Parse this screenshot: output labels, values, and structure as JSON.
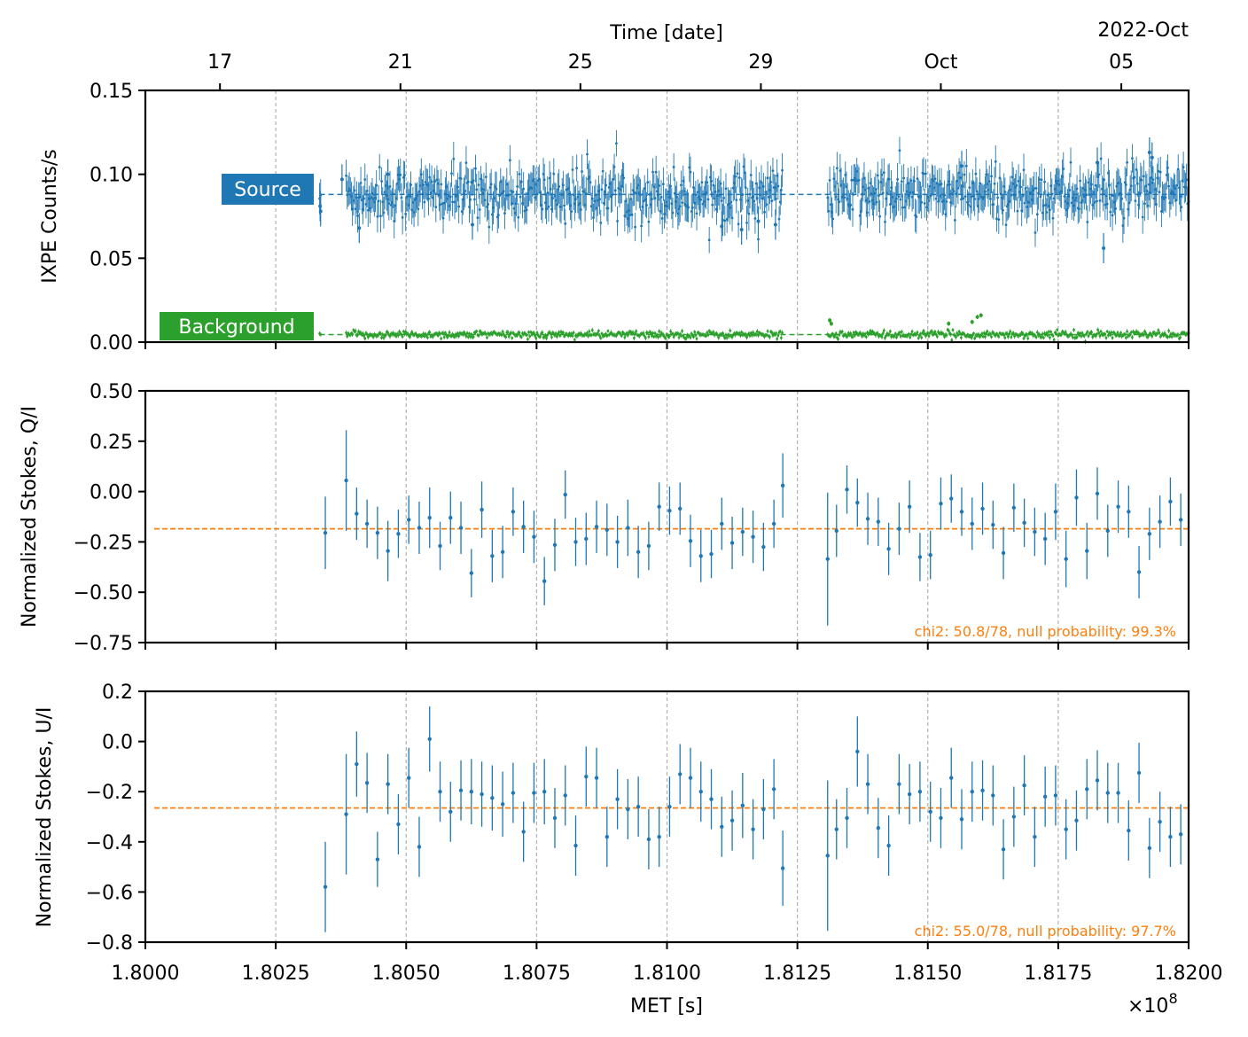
{
  "colors": {
    "source": "#1f77b4",
    "background": "#2ca02c",
    "fit": "#ff7f0e",
    "grid": "#b0b0b0"
  },
  "chart_data": {
    "type": "scatter",
    "x_axis": {
      "label": "MET [s]",
      "range": [
        1.8,
        1.82
      ],
      "ticks": [
        1.8,
        1.8025,
        1.805,
        1.8075,
        1.81,
        1.8125,
        1.815,
        1.8175,
        1.82
      ],
      "tick_labels": [
        "1.8000",
        "1.8025",
        "1.8050",
        "1.8075",
        "1.8100",
        "1.8125",
        "1.8150",
        "1.8175",
        "1.8200"
      ],
      "offset_label": "×10",
      "offset_exponent": "8"
    },
    "top_axis": {
      "label": "Time [date]",
      "corner_label": "2022-Oct",
      "ticks": [
        1.80143,
        1.80489,
        1.80834,
        1.8118,
        1.81525,
        1.81871
      ],
      "tick_labels": [
        "17",
        "21",
        "25",
        "29",
        "Oct",
        "05"
      ]
    },
    "panels": [
      {
        "id": "counts",
        "ylabel": "IXPE Counts/s",
        "ylim": [
          0,
          0.15
        ],
        "yticks": [
          0,
          0.05,
          0.1,
          0.15
        ],
        "ytick_labels": [
          "0.00",
          "0.05",
          "0.10",
          "0.15"
        ],
        "series": [
          {
            "name": "Source",
            "mean": 0.088,
            "sigma": 0.008,
            "err": 0.009,
            "segments": [
              [
                1.80334,
                1.80337
              ],
              [
                1.80385,
                1.81222
              ],
              [
                1.81308,
                1.82
              ]
            ],
            "points": [
              [
                1.80335,
                0.081
              ],
              [
                1.80336,
                0.078
              ],
              [
                1.80377,
                0.097
              ],
              [
                1.8041,
                0.068
              ],
              [
                1.80465,
                0.1
              ],
              [
                1.80627,
                0.07
              ],
              [
                1.81105,
                0.069
              ],
              [
                1.81143,
                0.067
              ],
              [
                1.81175,
                0.072
              ],
              [
                1.81208,
                0.07
              ],
              [
                1.81565,
                0.105
              ],
              [
                1.81825,
                0.107
              ],
              [
                1.81837,
                0.056
              ],
              [
                1.81925,
                0.113
              ],
              [
                1.8193,
                0.11
              ]
            ]
          },
          {
            "name": "Background",
            "mean": 0.0045,
            "sigma": 0.0011,
            "err": 0.0013,
            "segments": [
              [
                1.80334,
                1.80337
              ],
              [
                1.80385,
                1.81222
              ],
              [
                1.81308,
                1.82
              ]
            ],
            "points": [
              [
                1.81312,
                0.013
              ],
              [
                1.81315,
                0.011
              ],
              [
                1.8154,
                0.011
              ],
              [
                1.81585,
                0.012
              ],
              [
                1.81595,
                0.015
              ],
              [
                1.81602,
                0.016
              ]
            ]
          }
        ],
        "dashed_levels": [
          {
            "series": "Source",
            "value": 0.088,
            "x_range": [
              1.80334,
              1.82
            ]
          },
          {
            "series": "Background",
            "value": 0.0045,
            "x_range": [
              1.80334,
              1.82
            ]
          }
        ],
        "series_tags": [
          "Source",
          "Background"
        ]
      },
      {
        "id": "q",
        "ylabel": "Normalized Stokes, Q/I",
        "ylim": [
          -0.75,
          0.5
        ],
        "yticks": [
          -0.75,
          -0.5,
          -0.25,
          0,
          0.25,
          0.5
        ],
        "ytick_labels": [
          "−0.75",
          "−0.50",
          "−0.25",
          "0.00",
          "0.25",
          "0.50"
        ],
        "fit_value": -0.185,
        "chi_label": "chi2: 50.8/78, null probability: 99.3%",
        "points": [
          [
            1.80345,
            -0.205,
            0.18
          ],
          [
            1.80385,
            0.055,
            0.25
          ],
          [
            1.80405,
            -0.11,
            0.13
          ],
          [
            1.80425,
            -0.16,
            0.12
          ],
          [
            1.80445,
            -0.205,
            0.13
          ],
          [
            1.80465,
            -0.295,
            0.15
          ],
          [
            1.80485,
            -0.21,
            0.12
          ],
          [
            1.80505,
            -0.14,
            0.12
          ],
          [
            1.80525,
            -0.18,
            0.13
          ],
          [
            1.80545,
            -0.13,
            0.15
          ],
          [
            1.80565,
            -0.27,
            0.12
          ],
          [
            1.80585,
            -0.13,
            0.13
          ],
          [
            1.80605,
            -0.18,
            0.13
          ],
          [
            1.80625,
            -0.405,
            0.12
          ],
          [
            1.80645,
            -0.09,
            0.14
          ],
          [
            1.80665,
            -0.32,
            0.13
          ],
          [
            1.80685,
            -0.3,
            0.13
          ],
          [
            1.80705,
            -0.1,
            0.12
          ],
          [
            1.80725,
            -0.175,
            0.13
          ],
          [
            1.80745,
            -0.225,
            0.13
          ],
          [
            1.80765,
            -0.445,
            0.12
          ],
          [
            1.80785,
            -0.265,
            0.13
          ],
          [
            1.80805,
            -0.015,
            0.12
          ],
          [
            1.80825,
            -0.25,
            0.12
          ],
          [
            1.80845,
            -0.235,
            0.13
          ],
          [
            1.80865,
            -0.175,
            0.13
          ],
          [
            1.80885,
            -0.19,
            0.13
          ],
          [
            1.80905,
            -0.25,
            0.13
          ],
          [
            1.80925,
            -0.18,
            0.14
          ],
          [
            1.80945,
            -0.3,
            0.13
          ],
          [
            1.80965,
            -0.27,
            0.12
          ],
          [
            1.80985,
            -0.075,
            0.12
          ],
          [
            1.81005,
            -0.095,
            0.12
          ],
          [
            1.81025,
            -0.085,
            0.13
          ],
          [
            1.81045,
            -0.245,
            0.13
          ],
          [
            1.81065,
            -0.32,
            0.13
          ],
          [
            1.81085,
            -0.31,
            0.12
          ],
          [
            1.81105,
            -0.16,
            0.13
          ],
          [
            1.81125,
            -0.255,
            0.13
          ],
          [
            1.81145,
            -0.2,
            0.12
          ],
          [
            1.81165,
            -0.225,
            0.13
          ],
          [
            1.81185,
            -0.275,
            0.12
          ],
          [
            1.81205,
            -0.16,
            0.12
          ],
          [
            1.81222,
            0.03,
            0.16
          ],
          [
            1.81308,
            -0.335,
            0.33
          ],
          [
            1.81325,
            -0.195,
            0.13
          ],
          [
            1.81345,
            0.01,
            0.12
          ],
          [
            1.81365,
            -0.055,
            0.12
          ],
          [
            1.81385,
            -0.135,
            0.13
          ],
          [
            1.81405,
            -0.15,
            0.12
          ],
          [
            1.81425,
            -0.285,
            0.13
          ],
          [
            1.81445,
            -0.185,
            0.13
          ],
          [
            1.81465,
            -0.075,
            0.13
          ],
          [
            1.81485,
            -0.325,
            0.12
          ],
          [
            1.81505,
            -0.315,
            0.12
          ],
          [
            1.81525,
            -0.06,
            0.13
          ],
          [
            1.81545,
            -0.035,
            0.12
          ],
          [
            1.81565,
            -0.1,
            0.12
          ],
          [
            1.81585,
            -0.16,
            0.13
          ],
          [
            1.81605,
            -0.085,
            0.13
          ],
          [
            1.81625,
            -0.165,
            0.12
          ],
          [
            1.81645,
            -0.305,
            0.13
          ],
          [
            1.81665,
            -0.08,
            0.12
          ],
          [
            1.81685,
            -0.155,
            0.12
          ],
          [
            1.81705,
            -0.2,
            0.12
          ],
          [
            1.81725,
            -0.235,
            0.13
          ],
          [
            1.81745,
            -0.1,
            0.14
          ],
          [
            1.81765,
            -0.335,
            0.14
          ],
          [
            1.81785,
            -0.03,
            0.14
          ],
          [
            1.81805,
            -0.295,
            0.14
          ],
          [
            1.81825,
            -0.01,
            0.13
          ],
          [
            1.81845,
            -0.195,
            0.13
          ],
          [
            1.81865,
            -0.075,
            0.13
          ],
          [
            1.81885,
            -0.1,
            0.13
          ],
          [
            1.81905,
            -0.4,
            0.13
          ],
          [
            1.81925,
            -0.21,
            0.13
          ],
          [
            1.81945,
            -0.15,
            0.13
          ],
          [
            1.81965,
            -0.05,
            0.12
          ],
          [
            1.81985,
            -0.14,
            0.13
          ]
        ]
      },
      {
        "id": "u",
        "ylabel": "Normalized Stokes, U/I",
        "ylim": [
          -0.8,
          0.2
        ],
        "yticks": [
          -0.8,
          -0.6,
          -0.4,
          -0.2,
          0,
          0.2
        ],
        "ytick_labels": [
          "−0.8",
          "−0.6",
          "−0.4",
          "−0.2",
          "0.0",
          "0.2"
        ],
        "fit_value": -0.265,
        "chi_label": "chi2: 55.0/78, null probability: 97.7%",
        "points": [
          [
            1.80345,
            -0.58,
            0.18
          ],
          [
            1.80385,
            -0.29,
            0.24
          ],
          [
            1.80405,
            -0.09,
            0.13
          ],
          [
            1.80425,
            -0.165,
            0.12
          ],
          [
            1.80445,
            -0.47,
            0.11
          ],
          [
            1.80465,
            -0.17,
            0.12
          ],
          [
            1.80485,
            -0.33,
            0.12
          ],
          [
            1.80505,
            -0.145,
            0.12
          ],
          [
            1.80525,
            -0.42,
            0.12
          ],
          [
            1.80545,
            0.01,
            0.13
          ],
          [
            1.80565,
            -0.2,
            0.12
          ],
          [
            1.80585,
            -0.28,
            0.12
          ],
          [
            1.80605,
            -0.195,
            0.12
          ],
          [
            1.80625,
            -0.2,
            0.13
          ],
          [
            1.80645,
            -0.21,
            0.13
          ],
          [
            1.80665,
            -0.225,
            0.13
          ],
          [
            1.80685,
            -0.25,
            0.13
          ],
          [
            1.80705,
            -0.205,
            0.12
          ],
          [
            1.80725,
            -0.36,
            0.12
          ],
          [
            1.80745,
            -0.205,
            0.12
          ],
          [
            1.80765,
            -0.2,
            0.13
          ],
          [
            1.80785,
            -0.305,
            0.12
          ],
          [
            1.80805,
            -0.215,
            0.12
          ],
          [
            1.80825,
            -0.415,
            0.12
          ],
          [
            1.80845,
            -0.14,
            0.12
          ],
          [
            1.80865,
            -0.145,
            0.12
          ],
          [
            1.80885,
            -0.38,
            0.12
          ],
          [
            1.80905,
            -0.23,
            0.12
          ],
          [
            1.80925,
            -0.27,
            0.12
          ],
          [
            1.80945,
            -0.26,
            0.12
          ],
          [
            1.80965,
            -0.39,
            0.12
          ],
          [
            1.80985,
            -0.38,
            0.12
          ],
          [
            1.81005,
            -0.26,
            0.12
          ],
          [
            1.81025,
            -0.13,
            0.12
          ],
          [
            1.81045,
            -0.145,
            0.12
          ],
          [
            1.81065,
            -0.2,
            0.12
          ],
          [
            1.81085,
            -0.23,
            0.12
          ],
          [
            1.81105,
            -0.34,
            0.12
          ],
          [
            1.81125,
            -0.315,
            0.12
          ],
          [
            1.81145,
            -0.255,
            0.13
          ],
          [
            1.81165,
            -0.35,
            0.12
          ],
          [
            1.81185,
            -0.27,
            0.12
          ],
          [
            1.81205,
            -0.19,
            0.12
          ],
          [
            1.81222,
            -0.505,
            0.15
          ],
          [
            1.81308,
            -0.455,
            0.3
          ],
          [
            1.81325,
            -0.35,
            0.12
          ],
          [
            1.81345,
            -0.305,
            0.12
          ],
          [
            1.81365,
            -0.04,
            0.14
          ],
          [
            1.81385,
            -0.17,
            0.12
          ],
          [
            1.81405,
            -0.345,
            0.12
          ],
          [
            1.81425,
            -0.415,
            0.12
          ],
          [
            1.81445,
            -0.17,
            0.12
          ],
          [
            1.81465,
            -0.21,
            0.12
          ],
          [
            1.81485,
            -0.2,
            0.12
          ],
          [
            1.81505,
            -0.28,
            0.12
          ],
          [
            1.81525,
            -0.305,
            0.12
          ],
          [
            1.81545,
            -0.145,
            0.12
          ],
          [
            1.81565,
            -0.31,
            0.12
          ],
          [
            1.81585,
            -0.2,
            0.12
          ],
          [
            1.81605,
            -0.195,
            0.12
          ],
          [
            1.81625,
            -0.215,
            0.12
          ],
          [
            1.81645,
            -0.43,
            0.12
          ],
          [
            1.81665,
            -0.3,
            0.12
          ],
          [
            1.81685,
            -0.175,
            0.12
          ],
          [
            1.81705,
            -0.38,
            0.12
          ],
          [
            1.81725,
            -0.22,
            0.12
          ],
          [
            1.81745,
            -0.215,
            0.12
          ],
          [
            1.81765,
            -0.35,
            0.12
          ],
          [
            1.81785,
            -0.315,
            0.12
          ],
          [
            1.81805,
            -0.19,
            0.12
          ],
          [
            1.81825,
            -0.155,
            0.12
          ],
          [
            1.81845,
            -0.205,
            0.12
          ],
          [
            1.81865,
            -0.205,
            0.12
          ],
          [
            1.81885,
            -0.355,
            0.12
          ],
          [
            1.81905,
            -0.125,
            0.12
          ],
          [
            1.81925,
            -0.425,
            0.12
          ],
          [
            1.81945,
            -0.32,
            0.12
          ],
          [
            1.81965,
            -0.38,
            0.12
          ],
          [
            1.81985,
            -0.37,
            0.12
          ]
        ]
      }
    ]
  }
}
